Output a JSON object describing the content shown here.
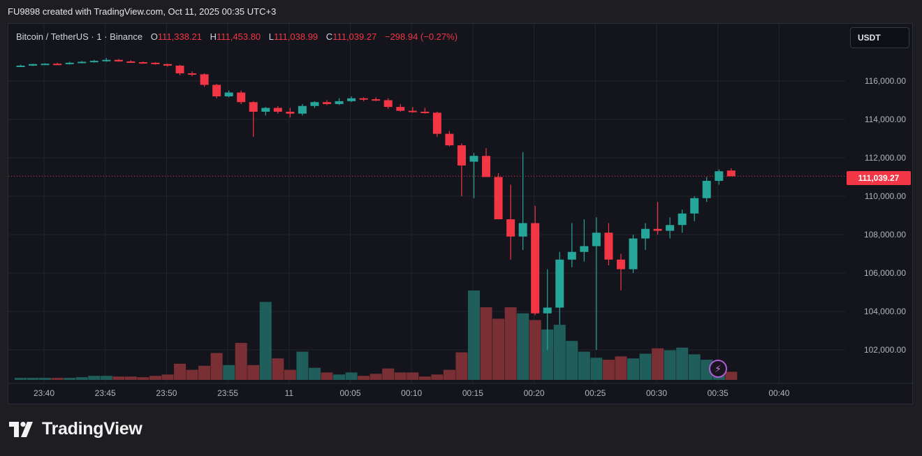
{
  "header": {
    "attribution": "FU9898 created with TradingView.com, Oct 11, 2025 00:35 UTC+3"
  },
  "legend": {
    "symbol": "Bitcoin / TetherUS · 1 · Binance",
    "open_label": "O",
    "open": "111,338.21",
    "high_label": "H",
    "high": "111,453.80",
    "low_label": "L",
    "low": "111,038.99",
    "close_label": "C",
    "close": "111,039.27",
    "change": "−298.94 (−0.27%)"
  },
  "currency_button": "USDT",
  "last_price_label": "111,039.27",
  "brand": {
    "name": "TradingView"
  },
  "icons": {
    "flash": "lightning-icon",
    "logo": "tradingview-logo-icon"
  },
  "colors": {
    "up": "#26a69a",
    "down": "#f23645",
    "volume_up": "#1f5e5a",
    "volume_down": "#7a2f34",
    "background": "#14151c"
  },
  "chart_data": {
    "type": "candlestick",
    "y_axis_ticks": [
      102000,
      104000,
      106000,
      108000,
      110000,
      112000,
      114000,
      116000
    ],
    "y_axis_labels": [
      "102,000.00",
      "104,000.00",
      "106,000.00",
      "108,000.00",
      "110,000.00",
      "112,000.00",
      "114,000.00",
      "116,000.00"
    ],
    "x_axis_labels": [
      "23:40",
      "23:45",
      "23:50",
      "23:55",
      "11",
      "00:05",
      "00:10",
      "00:15",
      "00:20",
      "00:25",
      "00:30",
      "00:35",
      "00:40"
    ],
    "last_price": 111039.27,
    "candles": [
      {
        "o": 116800,
        "h": 116850,
        "l": 116750,
        "c": 116800
      },
      {
        "o": 116800,
        "h": 116900,
        "l": 116780,
        "c": 116880
      },
      {
        "o": 116880,
        "h": 116920,
        "l": 116850,
        "c": 116900
      },
      {
        "o": 116900,
        "h": 116950,
        "l": 116850,
        "c": 116880
      },
      {
        "o": 116880,
        "h": 117000,
        "l": 116860,
        "c": 116950
      },
      {
        "o": 116950,
        "h": 117050,
        "l": 116920,
        "c": 117000
      },
      {
        "o": 117000,
        "h": 117100,
        "l": 116950,
        "c": 117050
      },
      {
        "o": 117050,
        "h": 117200,
        "l": 117000,
        "c": 117100
      },
      {
        "o": 117100,
        "h": 117150,
        "l": 117000,
        "c": 117020
      },
      {
        "o": 117020,
        "h": 117080,
        "l": 116950,
        "c": 116980
      },
      {
        "o": 116980,
        "h": 117020,
        "l": 116900,
        "c": 116950
      },
      {
        "o": 116950,
        "h": 116980,
        "l": 116850,
        "c": 116880
      },
      {
        "o": 116880,
        "h": 116900,
        "l": 116750,
        "c": 116800
      },
      {
        "o": 116800,
        "h": 116850,
        "l": 116300,
        "c": 116400
      },
      {
        "o": 116400,
        "h": 116500,
        "l": 116250,
        "c": 116350
      },
      {
        "o": 116350,
        "h": 116400,
        "l": 115700,
        "c": 115800
      },
      {
        "o": 115800,
        "h": 115850,
        "l": 115100,
        "c": 115200
      },
      {
        "o": 115200,
        "h": 115500,
        "l": 115150,
        "c": 115400
      },
      {
        "o": 115400,
        "h": 115500,
        "l": 114800,
        "c": 114900
      },
      {
        "o": 114900,
        "h": 114950,
        "l": 113100,
        "c": 114400
      },
      {
        "o": 114400,
        "h": 114650,
        "l": 114200,
        "c": 114600
      },
      {
        "o": 114600,
        "h": 114700,
        "l": 114300,
        "c": 114400
      },
      {
        "o": 114400,
        "h": 114600,
        "l": 114100,
        "c": 114300
      },
      {
        "o": 114300,
        "h": 114800,
        "l": 114200,
        "c": 114700
      },
      {
        "o": 114700,
        "h": 114950,
        "l": 114600,
        "c": 114900
      },
      {
        "o": 114900,
        "h": 115000,
        "l": 114750,
        "c": 114800
      },
      {
        "o": 114800,
        "h": 115100,
        "l": 114750,
        "c": 114950
      },
      {
        "o": 114950,
        "h": 115200,
        "l": 114900,
        "c": 115100
      },
      {
        "o": 115100,
        "h": 115150,
        "l": 114950,
        "c": 115050
      },
      {
        "o": 115050,
        "h": 115150,
        "l": 114950,
        "c": 115000
      },
      {
        "o": 115000,
        "h": 115100,
        "l": 114550,
        "c": 114650
      },
      {
        "o": 114650,
        "h": 114800,
        "l": 114400,
        "c": 114450
      },
      {
        "o": 114450,
        "h": 114650,
        "l": 114350,
        "c": 114400
      },
      {
        "o": 114400,
        "h": 114600,
        "l": 114300,
        "c": 114350
      },
      {
        "o": 114350,
        "h": 114400,
        "l": 113100,
        "c": 113250
      },
      {
        "o": 113250,
        "h": 113400,
        "l": 112600,
        "c": 112650
      },
      {
        "o": 112650,
        "h": 112750,
        "l": 110000,
        "c": 111600
      },
      {
        "o": 111800,
        "h": 112250,
        "l": 109900,
        "c": 112100
      },
      {
        "o": 112100,
        "h": 112500,
        "l": 111000,
        "c": 111000
      },
      {
        "o": 111000,
        "h": 111200,
        "l": 108800,
        "c": 108800
      },
      {
        "o": 108800,
        "h": 110600,
        "l": 106700,
        "c": 107900
      },
      {
        "o": 107900,
        "h": 112300,
        "l": 107200,
        "c": 108600
      },
      {
        "o": 108600,
        "h": 109500,
        "l": 103800,
        "c": 103900
      },
      {
        "o": 103900,
        "h": 106200,
        "l": 102000,
        "c": 104200
      },
      {
        "o": 104200,
        "h": 107100,
        "l": 103300,
        "c": 106700
      },
      {
        "o": 106700,
        "h": 108600,
        "l": 106300,
        "c": 107100
      },
      {
        "o": 107100,
        "h": 108800,
        "l": 106600,
        "c": 107400
      },
      {
        "o": 107400,
        "h": 108900,
        "l": 102000,
        "c": 108100
      },
      {
        "o": 108100,
        "h": 108600,
        "l": 106400,
        "c": 106700
      },
      {
        "o": 106700,
        "h": 107000,
        "l": 105100,
        "c": 106200
      },
      {
        "o": 106200,
        "h": 108000,
        "l": 106000,
        "c": 107800
      },
      {
        "o": 107800,
        "h": 108600,
        "l": 107200,
        "c": 108300
      },
      {
        "o": 108300,
        "h": 109700,
        "l": 108000,
        "c": 108200
      },
      {
        "o": 108200,
        "h": 108900,
        "l": 107800,
        "c": 108500
      },
      {
        "o": 108500,
        "h": 109300,
        "l": 108100,
        "c": 109100
      },
      {
        "o": 109100,
        "h": 110000,
        "l": 108700,
        "c": 109900
      },
      {
        "o": 109900,
        "h": 111000,
        "l": 109700,
        "c": 110800
      },
      {
        "o": 110800,
        "h": 111400,
        "l": 110600,
        "c": 111300
      },
      {
        "o": 111338.21,
        "h": 111453.8,
        "l": 111038.99,
        "c": 111039.27
      }
    ],
    "volume": [
      3,
      3,
      3,
      3,
      3,
      4,
      6,
      6,
      5,
      5,
      4,
      6,
      8,
      24,
      15,
      21,
      40,
      22,
      55,
      22,
      116,
      32,
      15,
      42,
      18,
      11,
      8,
      11,
      6,
      9,
      17,
      11,
      11,
      5,
      8,
      15,
      41,
      133,
      108,
      91,
      108,
      99,
      89,
      75,
      82,
      58,
      42,
      33,
      30,
      35,
      32,
      39,
      47,
      44,
      48,
      38,
      30,
      22,
      12
    ]
  }
}
